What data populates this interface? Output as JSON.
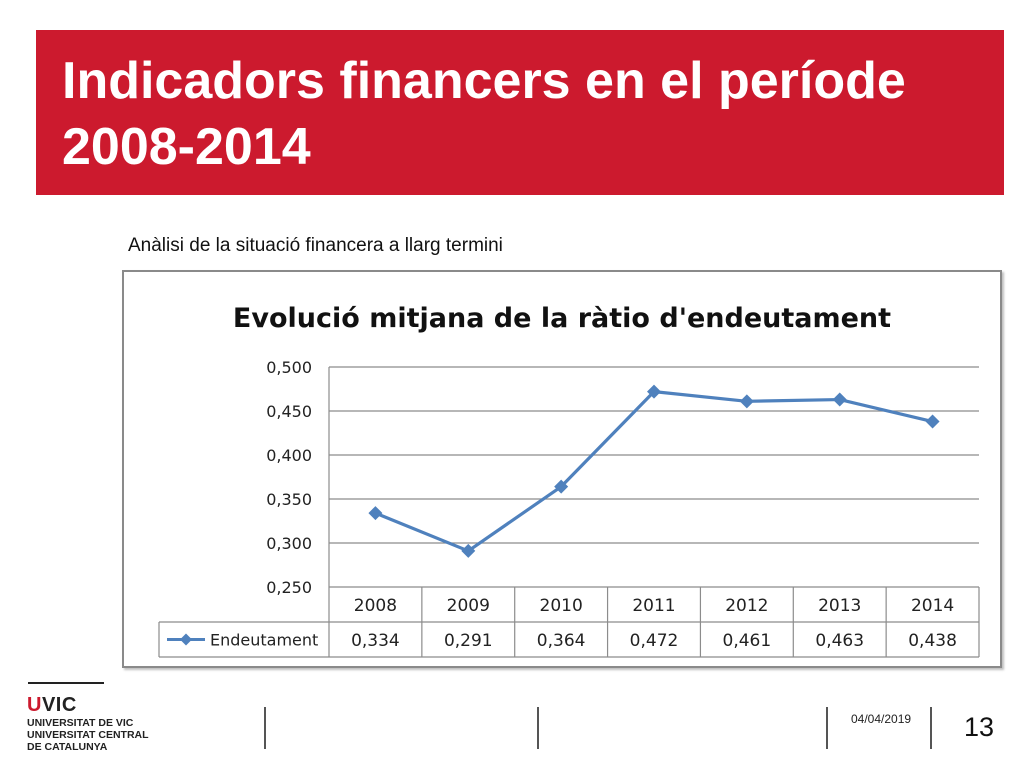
{
  "slide": {
    "title": "Indicadors financers en el període 2008-2014",
    "subtitle": "Anàlisi de la situació financera a llarg termini"
  },
  "chart_data": {
    "type": "line",
    "title": "Evolució mitjana de la ràtio d'endeutament",
    "categories": [
      "2008",
      "2009",
      "2010",
      "2011",
      "2012",
      "2013",
      "2014"
    ],
    "series": [
      {
        "name": "Endeutament",
        "values": [
          0.334,
          0.291,
          0.364,
          0.472,
          0.461,
          0.463,
          0.438
        ],
        "value_labels": [
          "0,334",
          "0,291",
          "0,364",
          "0,472",
          "0,461",
          "0,463",
          "0,438"
        ],
        "color": "#4f81bd",
        "marker": "diamond"
      }
    ],
    "ylim": [
      0.25,
      0.5
    ],
    "yticks": [
      0.25,
      0.3,
      0.35,
      0.4,
      0.45,
      0.5
    ],
    "ytick_labels": [
      "0,250",
      "0,300",
      "0,350",
      "0,400",
      "0,450",
      "0,500"
    ],
    "grid": true,
    "data_table": true,
    "legend_in_table": true
  },
  "branding": {
    "logo_text": "UVIC",
    "logo_lines": [
      "UNIVERSITAT DE VIC",
      "UNIVERSITAT CENTRAL",
      "DE CATALUNYA"
    ],
    "brand_color": "#cc1a2e"
  },
  "footer": {
    "date": "04/04/2019",
    "page_number": "13"
  }
}
